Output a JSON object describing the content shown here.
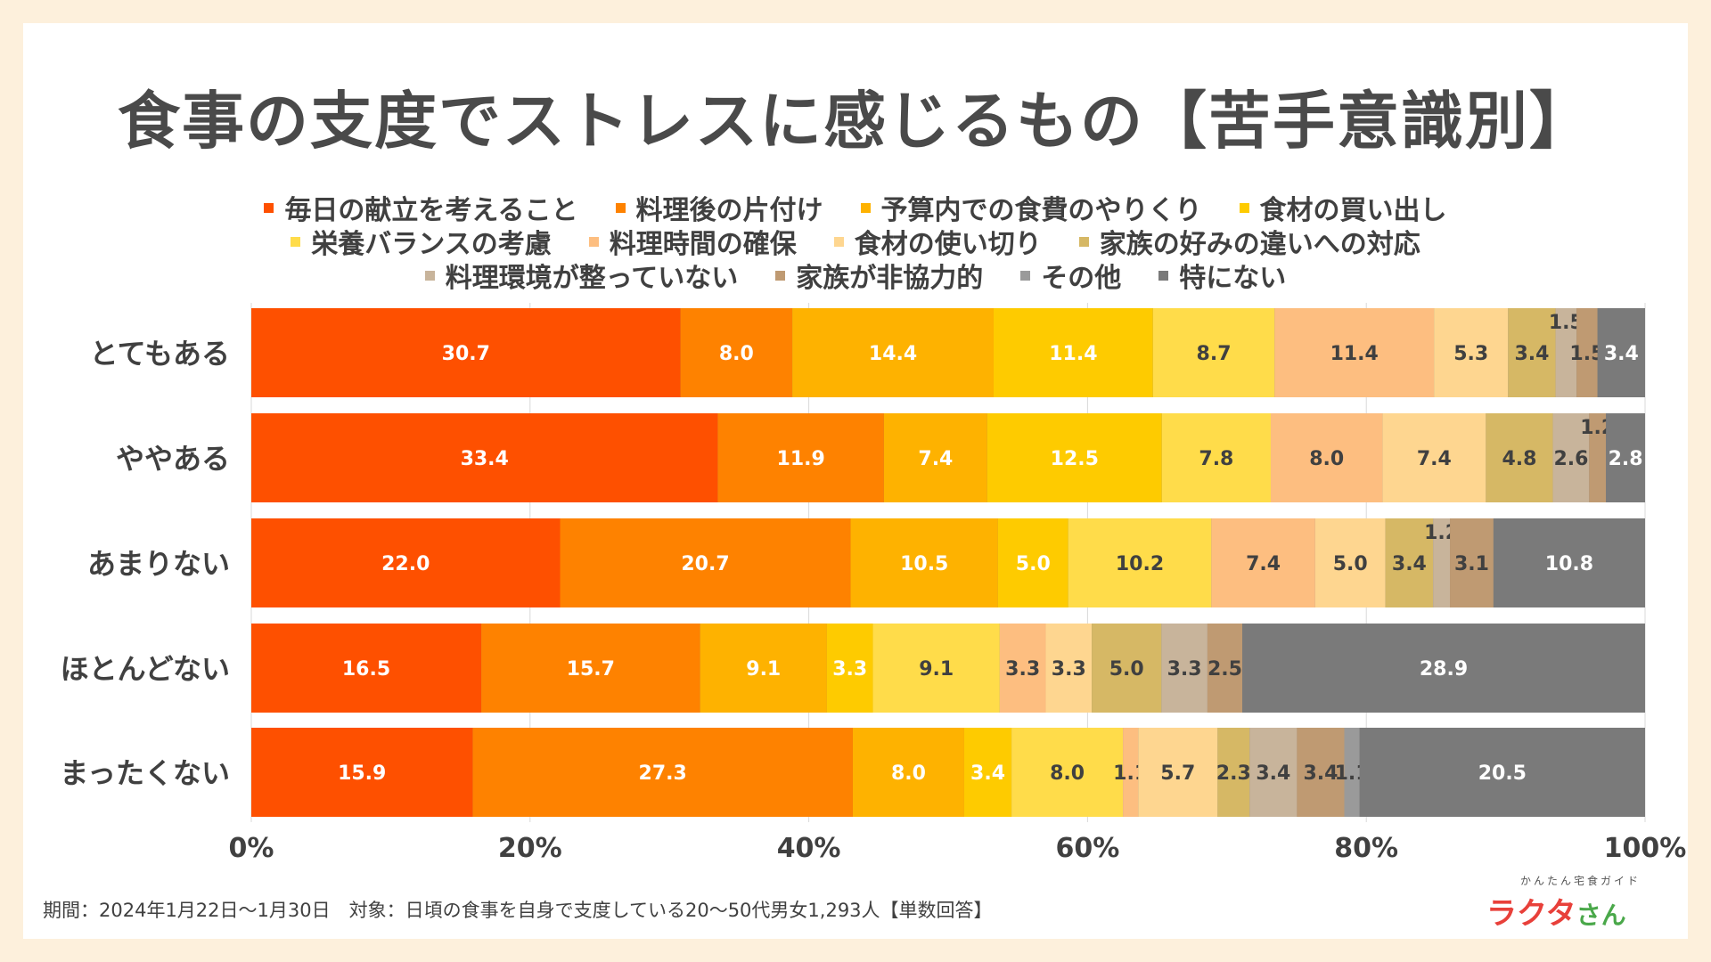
{
  "title": "食事の支度でストレスに感じるもの【苦手意識別】",
  "footer_note": "期間：2024年1月22日〜1月30日　対象：日頃の食事を自身で支度している20〜50代男女1,293人【単数回答】",
  "brand": {
    "tagline": "かんたん宅食ガイド",
    "logo": "ラクタ",
    "logo_suffix": "さん"
  },
  "chart_data": {
    "type": "bar",
    "orientation": "horizontal-stacked-100",
    "title": "食事の支度でストレスに感じるもの【苦手意識別】",
    "categories": [
      "とてもある",
      "ややある",
      "あまりない",
      "ほとんどない",
      "まったくない"
    ],
    "xlim": [
      0,
      100
    ],
    "x_ticks": [
      "0%",
      "20%",
      "40%",
      "60%",
      "80%",
      "100%"
    ],
    "legend_position": "top",
    "series": [
      {
        "name": "毎日の献立を考えること",
        "color": "#fe5000",
        "values": [
          30.7,
          33.4,
          22.0,
          16.5,
          15.9
        ]
      },
      {
        "name": "料理後の片付け",
        "color": "#fe8200",
        "values": [
          8.0,
          11.9,
          20.7,
          15.7,
          27.3
        ]
      },
      {
        "name": "予算内での食費のやりくり",
        "color": "#feb200",
        "values": [
          14.4,
          7.4,
          10.5,
          9.1,
          8.0
        ]
      },
      {
        "name": "食材の買い出し",
        "color": "#fecb00",
        "values": [
          11.4,
          12.5,
          5.0,
          3.3,
          3.4
        ]
      },
      {
        "name": "栄養バランスの考慮",
        "color": "#ffdc4a",
        "values": [
          8.7,
          7.8,
          10.2,
          9.1,
          8.0
        ]
      },
      {
        "name": "料理時間の確保",
        "color": "#fdbe80",
        "values": [
          11.4,
          8.0,
          7.4,
          3.3,
          1.1
        ]
      },
      {
        "name": "食材の使い切り",
        "color": "#fed690",
        "values": [
          5.3,
          7.4,
          5.0,
          3.3,
          5.7
        ]
      },
      {
        "name": "家族の好みの違いへの対応",
        "color": "#d6b865",
        "values": [
          3.4,
          4.8,
          3.4,
          5.0,
          2.3
        ]
      },
      {
        "name": "料理環境が整っていない",
        "color": "#c8b49b",
        "values": [
          1.5,
          2.6,
          1.2,
          3.3,
          3.4
        ]
      },
      {
        "name": "家族が非協力的",
        "color": "#bf9a72",
        "values": [
          1.5,
          1.2,
          3.1,
          2.5,
          3.4
        ]
      },
      {
        "name": "その他",
        "color": "#9a9a9a",
        "values": [
          0,
          0,
          0,
          0,
          1.1
        ]
      },
      {
        "name": "特にない",
        "color": "#7a7a7a",
        "values": [
          3.4,
          2.8,
          10.8,
          28.9,
          20.5
        ]
      }
    ],
    "label_overrides": {
      "0": {
        "8": "1.5",
        "9": "1.5",
        "11": "3.4",
        "raised": [
          8
        ]
      },
      "1": {
        "8": "2.6",
        "9": "1.2",
        "11": "2.8",
        "raised": [
          9
        ]
      },
      "2": {
        "8": "1.2",
        "9": "3.1",
        "raised": [
          8
        ]
      },
      "4": {
        "10": "1.1"
      }
    }
  }
}
